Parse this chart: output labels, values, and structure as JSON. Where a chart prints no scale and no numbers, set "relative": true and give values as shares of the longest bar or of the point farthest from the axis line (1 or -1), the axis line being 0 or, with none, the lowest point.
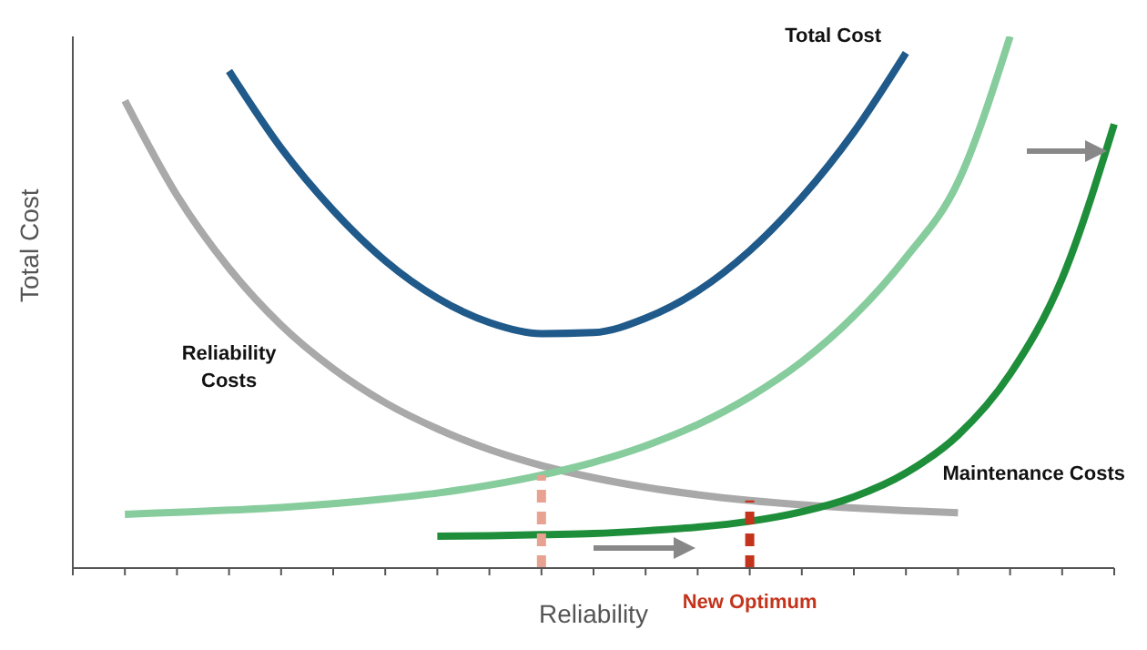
{
  "chart_data": {
    "type": "line",
    "relative": true,
    "xlabel": "Reliability",
    "ylabel": "Total Cost",
    "marker": "none",
    "line_style": "solid",
    "categories": [
      null,
      null,
      null,
      null,
      null,
      null,
      null,
      null,
      null,
      null,
      null,
      null,
      null,
      null,
      null,
      null,
      null,
      null,
      null,
      null,
      null
    ],
    "series": [
      {
        "name": "Total Cost",
        "color": "#1f5a8a",
        "values": [
          null,
          null,
          null,
          0.935,
          0.79,
          0.673,
          0.578,
          0.508,
          0.462,
          0.441,
          0.443,
          0.47,
          0.521,
          0.597,
          0.697,
          0.82,
          0.969,
          null,
          null,
          null,
          null
        ]
      },
      {
        "name": "Reliability\nCosts",
        "color": "#a9a9a9",
        "values": [
          null,
          0.879,
          0.701,
          0.564,
          0.457,
          0.375,
          0.311,
          0.262,
          0.223,
          0.193,
          0.17,
          0.152,
          0.138,
          0.127,
          0.119,
          0.113,
          0.108,
          0.104,
          null,
          null,
          null
        ]
      },
      {
        "color": "#86cc9c",
        "values": [
          null,
          0.101,
          0.105,
          0.109,
          0.114,
          0.121,
          0.13,
          0.141,
          0.156,
          0.175,
          0.199,
          0.23,
          0.27,
          0.322,
          0.388,
          0.474,
          0.584,
          0.726,
          1,
          null,
          null
        ]
      },
      {
        "name": "Maintenance Costs",
        "color": "#1e8e3a",
        "values": [
          null,
          null,
          null,
          null,
          null,
          null,
          null,
          0.06,
          0.061,
          0.063,
          0.065,
          0.07,
          0.077,
          0.088,
          0.106,
          0.134,
          0.179,
          0.25,
          0.365,
          0.545,
          0.835
        ]
      }
    ],
    "annotations": [
      "New Optimum"
    ]
  }
}
